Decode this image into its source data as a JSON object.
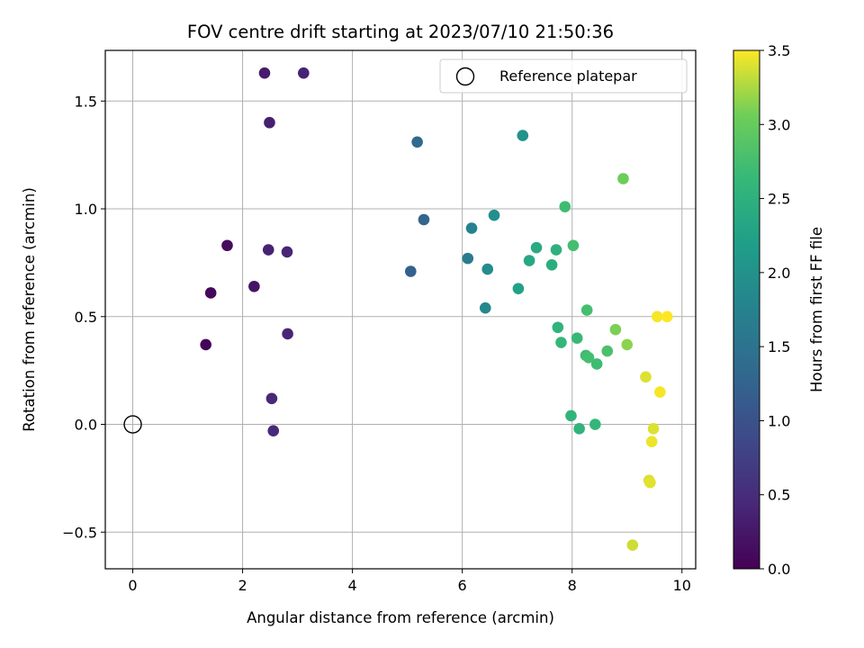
{
  "chart_data": {
    "type": "scatter",
    "title": "FOV centre drift starting at 2023/07/10 21:50:36",
    "xlabel": "Angular distance from reference (arcmin)",
    "ylabel": "Rotation from reference (arcmin)",
    "xlim": [
      -0.5,
      10.25
    ],
    "ylim": [
      -0.67,
      1.735
    ],
    "xticks": [
      0,
      2,
      4,
      6,
      8,
      10
    ],
    "xtick_labels": [
      "0",
      "2",
      "4",
      "6",
      "8",
      "10"
    ],
    "yticks": [
      -0.5,
      0.0,
      0.5,
      1.0,
      1.5
    ],
    "ytick_labels": [
      "−0.5",
      "0.0",
      "0.5",
      "1.0",
      "1.5"
    ],
    "grid": true,
    "legend": {
      "placement": "top-right",
      "entries": [
        "Reference platepar"
      ]
    },
    "reference_point": {
      "name": "Reference platepar",
      "x": 0.0,
      "y": 0.0
    },
    "colorbar": {
      "label": "Hours from first FF file",
      "colormap": "viridis",
      "range": [
        0.0,
        3.5
      ],
      "ticks": [
        0.0,
        0.5,
        1.0,
        1.5,
        2.0,
        2.5,
        3.0,
        3.5
      ],
      "tick_labels": [
        "0.0",
        "0.5",
        "1.0",
        "1.5",
        "2.0",
        "2.5",
        "3.0",
        "3.5"
      ]
    },
    "points": [
      {
        "x": 1.33,
        "y": 0.37,
        "c": 0.05
      },
      {
        "x": 1.42,
        "y": 0.61,
        "c": 0.08
      },
      {
        "x": 1.72,
        "y": 0.83,
        "c": 0.12
      },
      {
        "x": 2.21,
        "y": 0.64,
        "c": 0.22
      },
      {
        "x": 2.4,
        "y": 1.63,
        "c": 0.3
      },
      {
        "x": 2.49,
        "y": 1.4,
        "c": 0.35
      },
      {
        "x": 2.47,
        "y": 0.81,
        "c": 0.38
      },
      {
        "x": 2.53,
        "y": 0.12,
        "c": 0.45
      },
      {
        "x": 2.56,
        "y": -0.03,
        "c": 0.48
      },
      {
        "x": 2.81,
        "y": 0.8,
        "c": 0.4
      },
      {
        "x": 2.82,
        "y": 0.42,
        "c": 0.42
      },
      {
        "x": 3.11,
        "y": 1.63,
        "c": 0.38
      },
      {
        "x": 5.06,
        "y": 0.71,
        "c": 1.2
      },
      {
        "x": 5.18,
        "y": 1.31,
        "c": 1.35
      },
      {
        "x": 5.3,
        "y": 0.95,
        "c": 1.28
      },
      {
        "x": 6.1,
        "y": 0.77,
        "c": 1.65
      },
      {
        "x": 6.17,
        "y": 0.91,
        "c": 1.75
      },
      {
        "x": 6.42,
        "y": 0.54,
        "c": 1.85
      },
      {
        "x": 6.46,
        "y": 0.72,
        "c": 1.9
      },
      {
        "x": 6.58,
        "y": 0.97,
        "c": 1.95
      },
      {
        "x": 7.02,
        "y": 0.63,
        "c": 2.25
      },
      {
        "x": 7.1,
        "y": 1.34,
        "c": 2.0
      },
      {
        "x": 7.22,
        "y": 0.76,
        "c": 2.35
      },
      {
        "x": 7.35,
        "y": 0.82,
        "c": 2.4
      },
      {
        "x": 7.63,
        "y": 0.74,
        "c": 2.45
      },
      {
        "x": 7.71,
        "y": 0.81,
        "c": 2.5
      },
      {
        "x": 7.74,
        "y": 0.45,
        "c": 2.55
      },
      {
        "x": 7.8,
        "y": 0.38,
        "c": 2.6
      },
      {
        "x": 7.87,
        "y": 1.01,
        "c": 2.7
      },
      {
        "x": 7.98,
        "y": 0.04,
        "c": 2.55
      },
      {
        "x": 8.02,
        "y": 0.83,
        "c": 2.75
      },
      {
        "x": 8.09,
        "y": 0.4,
        "c": 2.65
      },
      {
        "x": 8.13,
        "y": -0.02,
        "c": 2.55
      },
      {
        "x": 8.25,
        "y": 0.32,
        "c": 2.7
      },
      {
        "x": 8.27,
        "y": 0.53,
        "c": 2.75
      },
      {
        "x": 8.3,
        "y": 0.31,
        "c": 2.75
      },
      {
        "x": 8.42,
        "y": 0.0,
        "c": 2.6
      },
      {
        "x": 8.45,
        "y": 0.28,
        "c": 2.7
      },
      {
        "x": 8.64,
        "y": 0.34,
        "c": 2.8
      },
      {
        "x": 8.79,
        "y": 0.44,
        "c": 3.1
      },
      {
        "x": 8.93,
        "y": 1.14,
        "c": 3.05
      },
      {
        "x": 9.0,
        "y": 0.37,
        "c": 3.15
      },
      {
        "x": 9.1,
        "y": -0.56,
        "c": 3.35
      },
      {
        "x": 9.34,
        "y": 0.22,
        "c": 3.4
      },
      {
        "x": 9.4,
        "y": -0.26,
        "c": 3.38
      },
      {
        "x": 9.42,
        "y": -0.27,
        "c": 3.42
      },
      {
        "x": 9.45,
        "y": -0.08,
        "c": 3.45
      },
      {
        "x": 9.48,
        "y": -0.02,
        "c": 3.4
      },
      {
        "x": 9.55,
        "y": 0.5,
        "c": 3.48
      },
      {
        "x": 9.6,
        "y": 0.15,
        "c": 3.48
      },
      {
        "x": 9.73,
        "y": 0.5,
        "c": 3.5
      }
    ]
  }
}
